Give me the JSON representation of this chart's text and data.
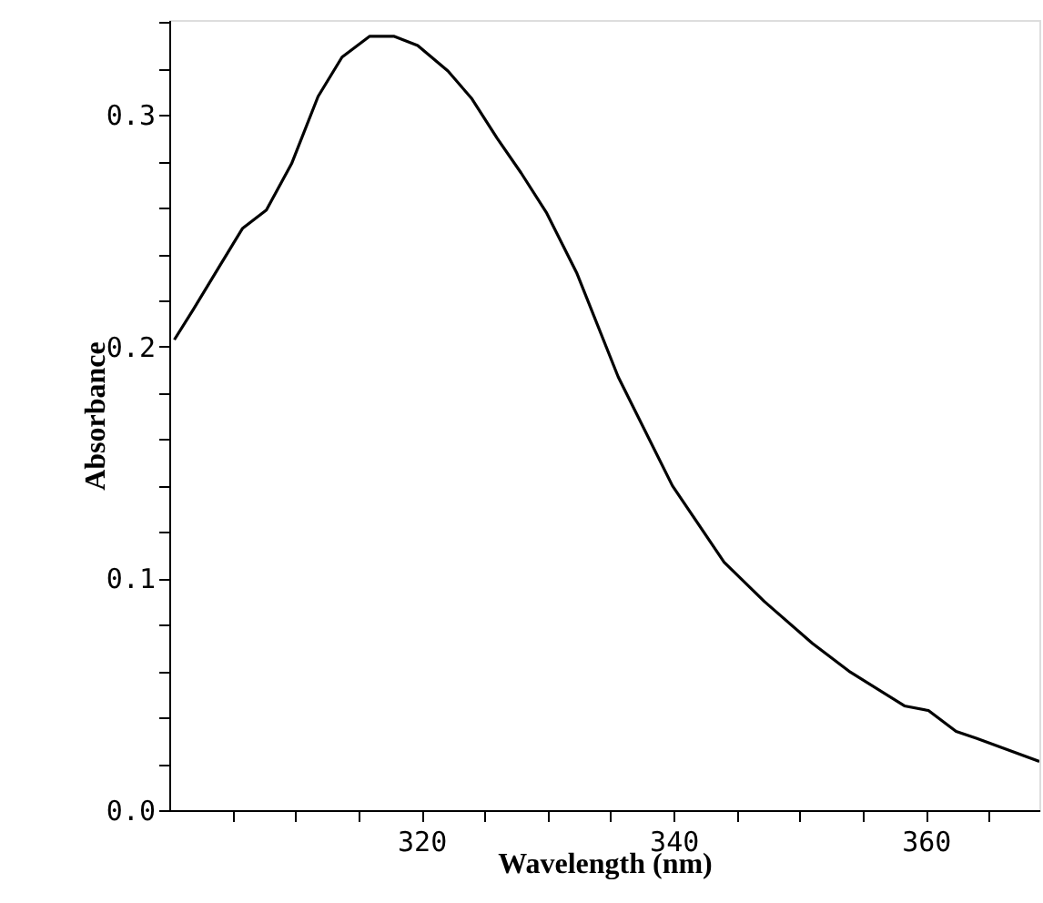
{
  "chart_data": {
    "type": "line",
    "xlabel": "Wavelength (nm)",
    "ylabel": "Absorbance",
    "x": [
      300.4,
      301.9,
      303.9,
      305.8,
      307.7,
      309.7,
      311.8,
      313.7,
      315.9,
      317.8,
      319.7,
      322.1,
      324.0,
      326.0,
      327.9,
      329.9,
      332.3,
      335.6,
      339.9,
      344.0,
      347.2,
      351.0,
      353.9,
      358.3,
      360.2,
      362.4,
      364.0,
      369.0
    ],
    "series": [
      {
        "color": "#000000",
        "values": [
          0.203,
          0.216,
          0.234,
          0.251,
          0.259,
          0.279,
          0.308,
          0.325,
          0.334,
          0.334,
          0.33,
          0.319,
          0.307,
          0.29,
          0.275,
          0.258,
          0.232,
          0.187,
          0.14,
          0.107,
          0.09,
          0.072,
          0.06,
          0.045,
          0.043,
          0.034,
          0.031,
          0.021
        ]
      }
    ],
    "xlim": [
      300,
      369
    ],
    "xticks": [
      {
        "value": 305,
        "label": null
      },
      {
        "value": 310,
        "label": null
      },
      {
        "value": 315,
        "label": null
      },
      320,
      {
        "value": 325,
        "label": null
      },
      {
        "value": 330,
        "label": null
      },
      {
        "value": 335,
        "label": null
      },
      340,
      {
        "value": 345,
        "label": null
      },
      {
        "value": 350,
        "label": null
      },
      {
        "value": 355,
        "label": null
      },
      360,
      {
        "value": 365,
        "label": null
      }
    ],
    "ylim": [
      0,
      0.341
    ],
    "yticks": [
      {
        "value": 0,
        "label": "0.0"
      },
      {
        "value": 0.02,
        "label": null
      },
      {
        "value": 0.04,
        "label": null
      },
      {
        "value": 0.06,
        "label": null
      },
      {
        "value": 0.08,
        "label": null
      },
      0.1,
      {
        "value": 0.12,
        "label": null
      },
      {
        "value": 0.14,
        "label": null
      },
      {
        "value": 0.16,
        "label": null
      },
      {
        "value": 0.18,
        "label": null
      },
      0.2,
      {
        "value": 0.22,
        "label": null
      },
      {
        "value": 0.24,
        "label": null
      },
      {
        "value": 0.26,
        "label": null
      },
      {
        "value": 0.28,
        "label": null
      },
      0.3,
      {
        "value": 0.32,
        "label": null
      },
      {
        "value": 0.34,
        "label": null
      }
    ],
    "grid": false,
    "marker": "none",
    "line_style": "solid"
  }
}
